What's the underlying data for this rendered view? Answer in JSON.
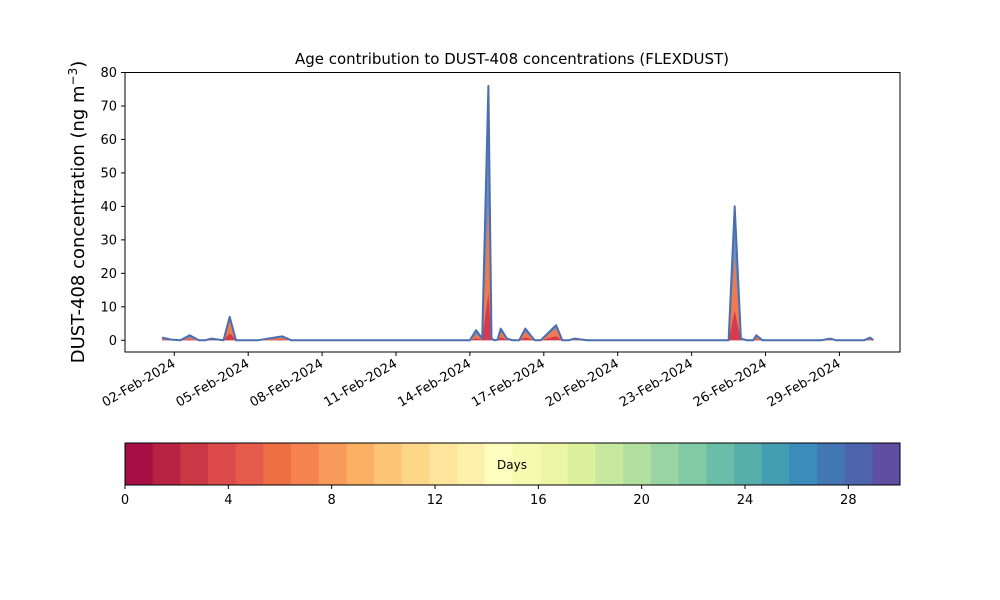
{
  "chart_data": {
    "type": "area",
    "title": "Age contribution to DUST-408 concentrations (FLEXDUST)",
    "xlabel": "",
    "ylabel": "DUST-408 concentration (ng m",
    "ylabel_sup": "−3",
    "ylabel_close": ")",
    "ylim": [
      -3.5,
      80
    ],
    "yticks": [
      "0",
      "10",
      "20",
      "30",
      "40",
      "50",
      "60",
      "70",
      "80"
    ],
    "xlim": [
      "2024-01-31",
      "2024-03-02 11:00"
    ],
    "xticks": [
      {
        "date": "2024-02-02",
        "label": "02-Feb-2024"
      },
      {
        "date": "2024-02-05",
        "label": "05-Feb-2024"
      },
      {
        "date": "2024-02-08",
        "label": "08-Feb-2024"
      },
      {
        "date": "2024-02-11",
        "label": "11-Feb-2024"
      },
      {
        "date": "2024-02-14",
        "label": "14-Feb-2024"
      },
      {
        "date": "2024-02-17",
        "label": "17-Feb-2024"
      },
      {
        "date": "2024-02-20",
        "label": "20-Feb-2024"
      },
      {
        "date": "2024-02-23",
        "label": "23-Feb-2024"
      },
      {
        "date": "2024-02-26",
        "label": "26-Feb-2024"
      },
      {
        "date": "2024-02-29",
        "label": "29-Feb-2024"
      }
    ],
    "grid": false,
    "stacked_by": "age (days)",
    "series_colormap": "Spectral",
    "outline_color": "#4a6fae",
    "total": {
      "x": [
        "2024-02-01 12:00",
        "2024-02-01 21:00",
        "2024-02-02 06:00",
        "2024-02-02 15:00",
        "2024-02-03 00:00",
        "2024-02-03 06:00",
        "2024-02-03 12:00",
        "2024-02-04 00:00",
        "2024-02-04 06:00",
        "2024-02-04 12:00",
        "2024-02-04 21:00",
        "2024-02-05 00:00",
        "2024-02-05 03:00",
        "2024-02-05 09:00",
        "2024-02-06 09:00",
        "2024-02-06 18:00",
        "2024-02-07 00:00",
        "2024-02-07 06:00",
        "2024-02-07 18:00",
        "2024-02-14 00:00",
        "2024-02-14 06:00",
        "2024-02-14 12:00",
        "2024-02-14 18:00",
        "2024-02-14 21:00",
        "2024-02-15 00:00",
        "2024-02-15 03:00",
        "2024-02-15 06:00",
        "2024-02-15 12:00",
        "2024-02-15 18:00",
        "2024-02-16 00:00",
        "2024-02-16 06:00",
        "2024-02-16 15:00",
        "2024-02-16 21:00",
        "2024-02-17 12:00",
        "2024-02-17 18:00",
        "2024-02-18 00:00",
        "2024-02-18 06:00",
        "2024-02-18 18:00",
        "2024-02-19 00:00",
        "2024-02-19 12:00",
        "2024-02-19 21:00",
        "2024-02-20 06:00",
        "2024-02-20 18:00",
        "2024-02-21 00:00",
        "2024-02-22 12:00",
        "2024-02-22 18:00",
        "2024-02-23 06:00",
        "2024-02-24 12:00",
        "2024-02-24 18:00",
        "2024-02-25 00:00",
        "2024-02-25 06:00",
        "2024-02-25 09:00",
        "2024-02-25 12:00",
        "2024-02-25 15:00",
        "2024-02-25 21:00",
        "2024-02-26 06:00",
        "2024-02-27 12:00",
        "2024-02-27 21:00",
        "2024-02-28 06:00",
        "2024-02-28 15:00",
        "2024-02-28 21:00",
        "2024-02-29 06:00",
        "2024-02-29 15:00",
        "2024-02-29 18:00",
        "2024-03-01 00:00",
        "2024-03-01 06:00",
        "2024-03-01 09:00"
      ],
      "y": [
        0.8,
        0.2,
        0,
        1.5,
        0,
        0,
        0.5,
        0,
        7,
        0,
        0,
        0,
        0,
        0,
        1.2,
        0,
        0,
        0,
        0,
        0,
        3,
        0.5,
        76,
        0.5,
        0,
        0.2,
        3.5,
        0.5,
        0,
        0,
        3.5,
        0,
        0,
        4.5,
        0,
        0,
        0.5,
        0,
        0,
        0,
        0,
        0,
        0,
        0,
        0,
        0,
        0,
        0,
        40,
        0.5,
        0,
        0,
        0,
        1.5,
        0,
        0,
        0,
        0,
        0,
        0.5,
        0,
        0,
        0,
        0,
        0,
        0.8,
        0
      ]
    },
    "series": [
      {
        "values": [
          0.4,
          0.1,
          0,
          0.8,
          0,
          0,
          0.3,
          0,
          6,
          0,
          0,
          0,
          0,
          0,
          0.7,
          0,
          0,
          0,
          0,
          0,
          1.8,
          0.3,
          40,
          0.3,
          0,
          0.1,
          2.5,
          0.3,
          0,
          0,
          2.5,
          0,
          0,
          3.5,
          0,
          0,
          0.3,
          0,
          0,
          0,
          0,
          0,
          0,
          0,
          0,
          0,
          0,
          0,
          25,
          0.3,
          0,
          0,
          0,
          1,
          0,
          0,
          0,
          0,
          0,
          0.3,
          0,
          0,
          0,
          0,
          0,
          0.5,
          0
        ]
      }
    ],
    "colorbar": {
      "label": "Days",
      "range": [
        0,
        30
      ],
      "ticks": [
        "0",
        "4",
        "8",
        "12",
        "16",
        "20",
        "24",
        "28"
      ],
      "colors": [
        "#a50f44",
        "#b82344",
        "#cb3846",
        "#dc4a4c",
        "#e55d4a",
        "#ef6f45",
        "#f5834f",
        "#f89a5a",
        "#fbb064",
        "#fdc575",
        "#fdd788",
        "#fee59b",
        "#fef1ab",
        "#fffebe",
        "#f6fab1",
        "#ebf7a6",
        "#daf09c",
        "#c7e89f",
        "#b1df9f",
        "#99d5a4",
        "#80cba4",
        "#6abda6",
        "#57aeab",
        "#449eb2",
        "#3b8bbb",
        "#4277b4",
        "#4d65ad",
        "#5e4fa2"
      ]
    }
  }
}
